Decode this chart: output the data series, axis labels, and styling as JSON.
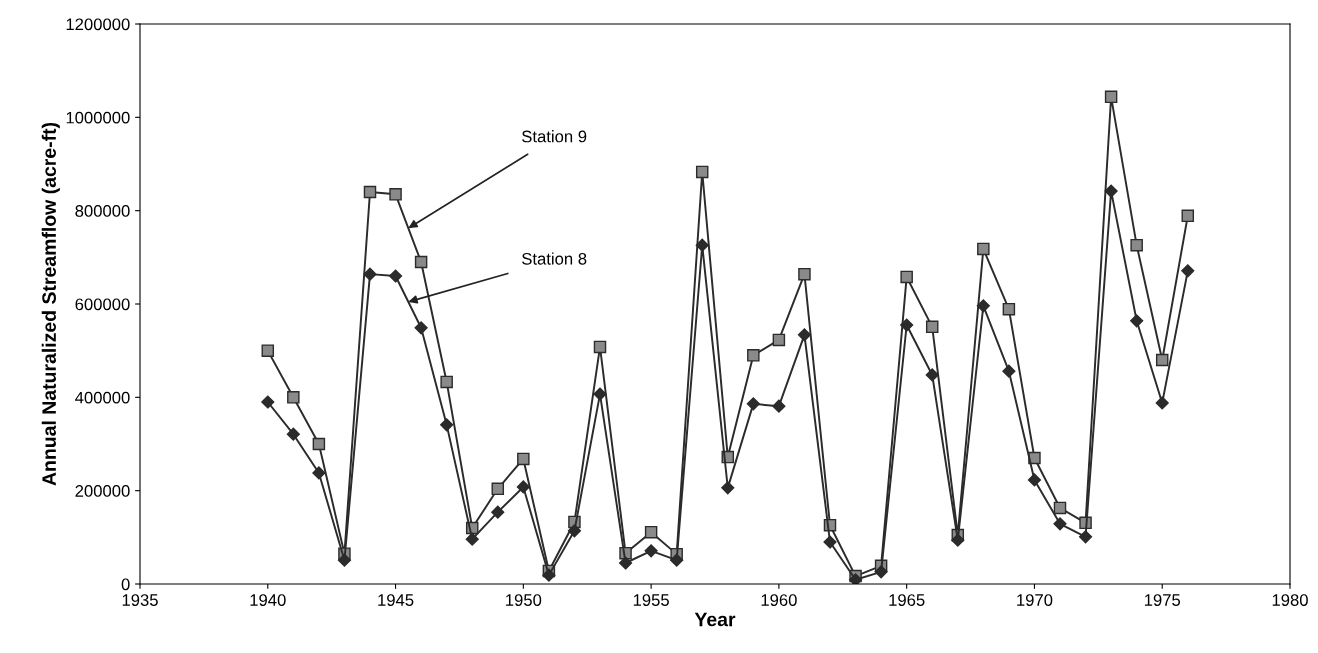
{
  "chart_data": {
    "type": "line",
    "xlabel": "Year",
    "ylabel": "Annual Naturalized Streamflow (acre-ft)",
    "x": [
      1940,
      1941,
      1942,
      1943,
      1944,
      1945,
      1946,
      1947,
      1948,
      1949,
      1950,
      1951,
      1952,
      1953,
      1954,
      1955,
      1956,
      1957,
      1958,
      1959,
      1960,
      1961,
      1962,
      1963,
      1964,
      1965,
      1966,
      1967,
      1968,
      1969,
      1970,
      1971,
      1972,
      1973,
      1974,
      1975,
      1976
    ],
    "series": [
      {
        "color": "#2b2b2b",
        "marker": "square",
        "values": [
          500000,
          400000,
          300000,
          65000,
          840000,
          835000,
          690000,
          433000,
          120000,
          204000,
          268000,
          28000,
          133000,
          508000,
          66000,
          111000,
          64000,
          883000,
          272000,
          490000,
          523000,
          664000,
          126000,
          17000,
          39000,
          658000,
          551000,
          105000,
          718000,
          589000,
          270000,
          163000,
          131000,
          1044000,
          726000,
          480000,
          789000
        ]
      },
      {
        "color": "#2b2b2b",
        "marker": "diamond",
        "values": [
          390000,
          321000,
          238000,
          51000,
          664000,
          660000,
          549000,
          341000,
          96000,
          154000,
          208000,
          19000,
          114000,
          407000,
          45000,
          71000,
          51000,
          726000,
          206000,
          386000,
          381000,
          534000,
          90000,
          9000,
          26000,
          555000,
          448000,
          94000,
          596000,
          456000,
          223000,
          129000,
          101000,
          842000,
          564000,
          388000,
          671000
        ]
      }
    ],
    "annotations": [
      {
        "text": "Station 9",
        "x": 1945.5,
        "y": 762500
      },
      {
        "text": "Station 8",
        "x": 1945.5,
        "y": 604500
      }
    ],
    "xlim": [
      1935,
      1980
    ],
    "xticks": [
      1935,
      1940,
      1945,
      1950,
      1955,
      1960,
      1965,
      1970,
      1975,
      1980
    ],
    "ylim": [
      0,
      1200000
    ],
    "yticks": [
      0,
      200000,
      400000,
      600000,
      800000,
      1000000,
      1200000
    ],
    "grid": false,
    "legend": false
  }
}
